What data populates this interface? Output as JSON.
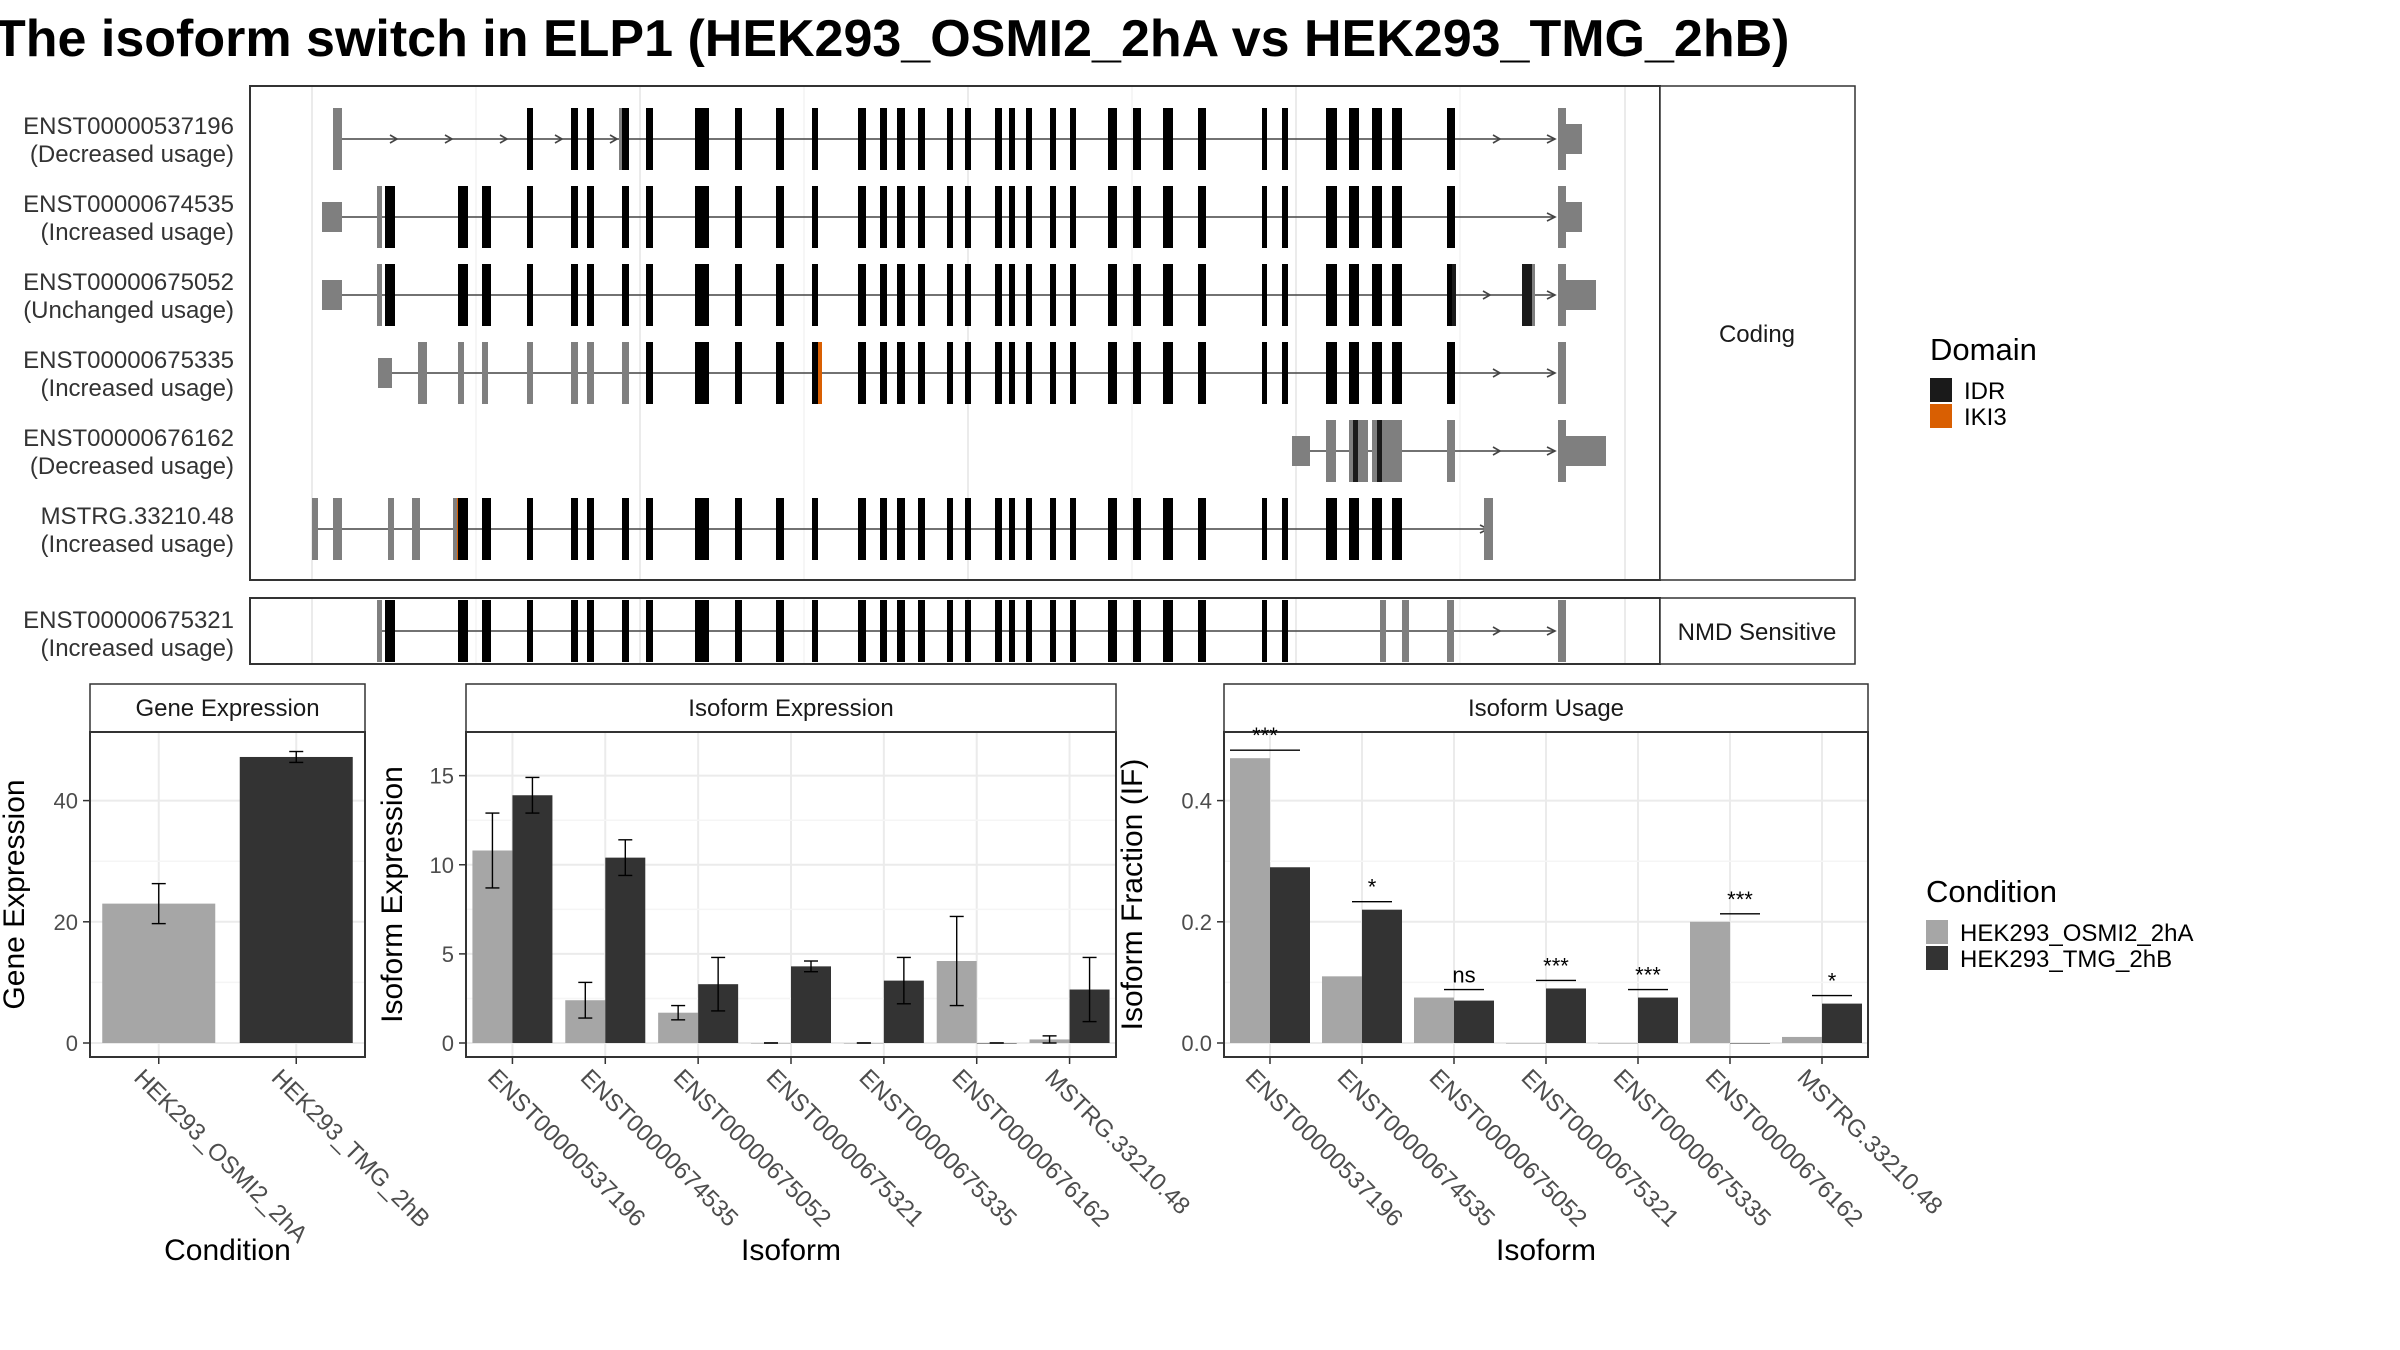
{
  "title": "The isoform switch in ELP1 (HEK293_OSMI2_2hA vs HEK293_TMG_2hB)",
  "colors": {
    "idr": "#1a1a1a",
    "iki3": "#d95f02",
    "exon": "#7f7f7f",
    "cond_a": "#a6a6a6",
    "cond_b": "#333333",
    "grid": "#ebebeb"
  },
  "chart_data": [
    {
      "type": "gene-structure",
      "panels": [
        {
          "label": "Coding",
          "transcripts": [
            {
              "id": "ENST00000537196",
              "usage": "(Decreased usage)"
            },
            {
              "id": "ENST00000674535",
              "usage": "(Increased usage)"
            },
            {
              "id": "ENST00000675052",
              "usage": "(Unchanged usage)"
            },
            {
              "id": "ENST00000675335",
              "usage": "(Increased usage)"
            },
            {
              "id": "ENST00000676162",
              "usage": "(Decreased usage)"
            },
            {
              "id": "MSTRG.33210.48",
              "usage": "(Increased usage)"
            }
          ]
        },
        {
          "label": "NMD Sensitive",
          "transcripts": [
            {
              "id": "ENST00000675321",
              "usage": "(Increased usage)"
            }
          ]
        }
      ],
      "legend": {
        "title": "Domain",
        "entries": [
          "IDR",
          "IKI3"
        ]
      }
    },
    {
      "type": "bar",
      "title": "Gene Expression",
      "xlabel": "Condition",
      "ylabel": "Gene Expression",
      "categories": [
        "HEK293_OSMI2_2hA",
        "HEK293_TMG_2hB"
      ],
      "values": [
        23.0,
        47.2
      ],
      "errors": [
        3.3,
        0.9
      ],
      "ylim": [
        0,
        50
      ],
      "yticks": [
        "0",
        "20",
        "40"
      ],
      "ytick_values": [
        0,
        20,
        40
      ]
    },
    {
      "type": "bar",
      "title": "Isoform Expression",
      "xlabel": "Isoform",
      "ylabel": "Isoform Expression",
      "categories": [
        "ENST00000537196",
        "ENST00000674535",
        "ENST00000675052",
        "ENST00000675321",
        "ENST00000675335",
        "ENST00000676162",
        "MSTRG.33210.48"
      ],
      "series": [
        {
          "name": "HEK293_OSMI2_2hA",
          "values": [
            10.8,
            2.4,
            1.7,
            0.0,
            0.0,
            4.6,
            0.2
          ],
          "errors": [
            2.1,
            1.0,
            0.4,
            0.0,
            0.0,
            2.5,
            0.2
          ]
        },
        {
          "name": "HEK293_TMG_2hB",
          "values": [
            13.9,
            10.4,
            3.3,
            4.3,
            3.5,
            0.0,
            3.0
          ],
          "errors": [
            1.0,
            1.0,
            1.5,
            0.3,
            1.3,
            0.0,
            1.8
          ]
        }
      ],
      "ylim": [
        0,
        17
      ],
      "yticks": [
        "0",
        "5",
        "10",
        "15"
      ],
      "ytick_values": [
        0,
        5,
        10,
        15
      ]
    },
    {
      "type": "bar",
      "title": "Isoform Usage",
      "xlabel": "Isoform",
      "ylabel": "Isoform Fraction (IF)",
      "categories": [
        "ENST00000537196",
        "ENST00000674535",
        "ENST00000675052",
        "ENST00000675321",
        "ENST00000675335",
        "ENST00000676162",
        "MSTRG.33210.48"
      ],
      "series": [
        {
          "name": "HEK293_OSMI2_2hA",
          "values": [
            0.47,
            0.11,
            0.075,
            0.0,
            0.0,
            0.2,
            0.01
          ]
        },
        {
          "name": "HEK293_TMG_2hB",
          "values": [
            0.29,
            0.22,
            0.07,
            0.09,
            0.075,
            0.0,
            0.065
          ]
        }
      ],
      "significance": [
        "***",
        "*",
        "ns",
        "***",
        "***",
        "***",
        "*"
      ],
      "ylim": [
        0,
        0.5
      ],
      "yticks": [
        "0.0",
        "0.2",
        "0.4"
      ],
      "ytick_values": [
        0,
        0.2,
        0.4
      ]
    }
  ],
  "condition_legend": {
    "title": "Condition",
    "entries": [
      "HEK293_OSMI2_2hA",
      "HEK293_TMG_2hB"
    ]
  }
}
